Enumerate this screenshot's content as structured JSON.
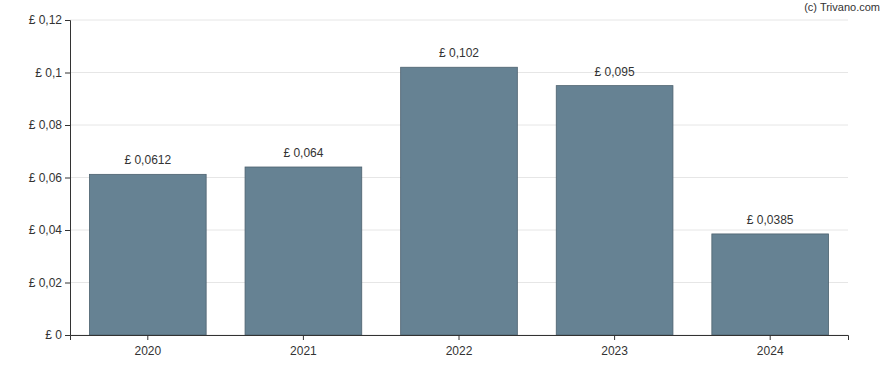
{
  "chart_data": {
    "type": "bar",
    "categories": [
      "2020",
      "2021",
      "2022",
      "2023",
      "2024"
    ],
    "values": [
      0.0612,
      0.064,
      0.102,
      0.095,
      0.0385
    ],
    "value_labels": [
      "£ 0,0612",
      "£ 0,064",
      "£ 0,102",
      "£ 0,095",
      "£ 0,0385"
    ],
    "data_labels": true,
    "color": "#668293",
    "ylim": [
      0,
      0.12
    ],
    "yticks": [
      {
        "value": 0,
        "label": "£ 0"
      },
      {
        "value": 0.02,
        "label": "£ 0,02"
      },
      {
        "value": 0.04,
        "label": "£ 0,04"
      },
      {
        "value": 0.06,
        "label": "£ 0,06"
      },
      {
        "value": 0.08,
        "label": "£ 0,08"
      },
      {
        "value": 0.1,
        "label": "£ 0,1"
      },
      {
        "value": 0.12,
        "label": "£ 0,12"
      }
    ],
    "grid": true,
    "annotations": [
      "(c) Trivano.com"
    ]
  }
}
